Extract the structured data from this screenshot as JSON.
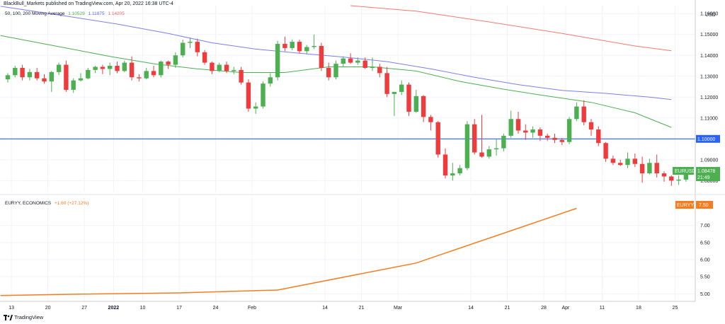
{
  "header": {
    "attribution": "BlackBull_Markets published on TradingView.com, Apr 20, 2022 16:38 UTC-4"
  },
  "ma_legend": {
    "label": "50, 100, 200 Moving Average",
    "values": [
      "1.10529",
      "1.11875",
      "1.14205"
    ],
    "colors": [
      "#4caf50",
      "#5b6ee1",
      "#f06a5f"
    ]
  },
  "eury_legend": {
    "label": "EURYY, ECONOMICS",
    "change": "+1.60 (+27.12%)",
    "color": "#f57c1f"
  },
  "branding": {
    "name": "TradingView"
  },
  "colors": {
    "up": "#4caf50",
    "down": "#ef3b3b",
    "hline": "#2962ff",
    "eury": "#f57c1f"
  },
  "chart_data": [
    {
      "type": "candlestick",
      "symbol": "EURUSD",
      "currency": "USD",
      "last_price": "1.08478",
      "countdown": "21:49",
      "ylim": [
        1.0747,
        1.1638
      ],
      "yticks": [
        "1.16000",
        "1.15000",
        "1.14000",
        "1.13000",
        "1.12000",
        "1.11000",
        "1.09000",
        "1.08000"
      ],
      "horizontal_line": {
        "value": 1.1,
        "label": "1.10000"
      },
      "xticks": [
        {
          "label": "13",
          "x": 0.5
        },
        {
          "label": "20",
          "x": 5.5
        },
        {
          "label": "27",
          "x": 10.5
        },
        {
          "label": "2022",
          "x": 14.5
        },
        {
          "label": "10",
          "x": 18.5
        },
        {
          "label": "17",
          "x": 23.5
        },
        {
          "label": "24",
          "x": 28.5
        },
        {
          "label": "Feb",
          "x": 33.5
        },
        {
          "label": "14",
          "x": 43.5
        },
        {
          "label": "21",
          "x": 48.5
        },
        {
          "label": "Mar",
          "x": 53.5
        },
        {
          "label": "14",
          "x": 63.5
        },
        {
          "label": "21",
          "x": 68.5
        },
        {
          "label": "28",
          "x": 73.5
        },
        {
          "label": "Apr",
          "x": 76.5
        },
        {
          "label": "11",
          "x": 81.5
        },
        {
          "label": "18",
          "x": 86.5
        },
        {
          "label": "25",
          "x": 91.5
        }
      ],
      "candles": [
        [
          1.1285,
          1.1315,
          1.127,
          1.1305
        ],
        [
          1.1305,
          1.135,
          1.1295,
          1.134
        ],
        [
          1.134,
          1.1355,
          1.128,
          1.1295
        ],
        [
          1.1295,
          1.1335,
          1.128,
          1.132
        ],
        [
          1.132,
          1.134,
          1.128,
          1.129
        ],
        [
          1.129,
          1.131,
          1.1265,
          1.1275
        ],
        [
          1.1275,
          1.1325,
          1.1225,
          1.132
        ],
        [
          1.132,
          1.1365,
          1.1305,
          1.1355
        ],
        [
          1.1355,
          1.1375,
          1.1225,
          1.1235
        ],
        [
          1.1235,
          1.129,
          1.122,
          1.128
        ],
        [
          1.128,
          1.1315,
          1.1275,
          1.129
        ],
        [
          1.129,
          1.134,
          1.1285,
          1.133
        ],
        [
          1.133,
          1.135,
          1.1315,
          1.1345
        ],
        [
          1.1345,
          1.1355,
          1.131,
          1.1335
        ],
        [
          1.1335,
          1.1365,
          1.1305,
          1.135
        ],
        [
          1.135,
          1.137,
          1.1315,
          1.1325
        ],
        [
          1.1325,
          1.1375,
          1.132,
          1.1365
        ],
        [
          1.1365,
          1.1395,
          1.128,
          1.1295
        ],
        [
          1.1295,
          1.131,
          1.1275,
          1.129
        ],
        [
          1.129,
          1.134,
          1.1285,
          1.1325
        ],
        [
          1.1325,
          1.135,
          1.1295,
          1.1305
        ],
        [
          1.1305,
          1.1375,
          1.1295,
          1.137
        ],
        [
          1.137,
          1.1375,
          1.1335,
          1.1355
        ],
        [
          1.1355,
          1.1415,
          1.134,
          1.14
        ],
        [
          1.14,
          1.1475,
          1.139,
          1.146
        ],
        [
          1.146,
          1.1485,
          1.1435,
          1.1465
        ],
        [
          1.1465,
          1.148,
          1.1395,
          1.1415
        ],
        [
          1.1415,
          1.1425,
          1.1355,
          1.1365
        ],
        [
          1.1365,
          1.137,
          1.131,
          1.1325
        ],
        [
          1.1325,
          1.1365,
          1.132,
          1.1355
        ],
        [
          1.1355,
          1.137,
          1.1315,
          1.1325
        ],
        [
          1.1325,
          1.1345,
          1.131,
          1.133
        ],
        [
          1.133,
          1.1345,
          1.126,
          1.127
        ],
        [
          1.127,
          1.1285,
          1.113,
          1.1145
        ],
        [
          1.1145,
          1.1175,
          1.112,
          1.1155
        ],
        [
          1.1155,
          1.1275,
          1.1145,
          1.1265
        ],
        [
          1.1265,
          1.1315,
          1.125,
          1.1295
        ],
        [
          1.1295,
          1.147,
          1.128,
          1.1455
        ],
        [
          1.1455,
          1.149,
          1.142,
          1.1435
        ],
        [
          1.1435,
          1.1475,
          1.1425,
          1.1465
        ],
        [
          1.1465,
          1.1475,
          1.141,
          1.142
        ],
        [
          1.142,
          1.145,
          1.1405,
          1.144
        ],
        [
          1.144,
          1.15,
          1.143,
          1.1445
        ],
        [
          1.1445,
          1.146,
          1.1325,
          1.134
        ],
        [
          1.134,
          1.1365,
          1.128,
          1.1295
        ],
        [
          1.1295,
          1.1375,
          1.1285,
          1.136
        ],
        [
          1.136,
          1.1395,
          1.1345,
          1.1385
        ],
        [
          1.1385,
          1.141,
          1.136,
          1.1365
        ],
        [
          1.1365,
          1.139,
          1.1355,
          1.1375
        ],
        [
          1.1375,
          1.139,
          1.1335,
          1.134
        ],
        [
          1.134,
          1.139,
          1.1325,
          1.1345
        ],
        [
          1.1345,
          1.136,
          1.1295,
          1.1315
        ],
        [
          1.1315,
          1.1345,
          1.12,
          1.1215
        ],
        [
          1.1215,
          1.1225,
          1.111,
          1.1225
        ],
        [
          1.1225,
          1.128,
          1.121,
          1.126
        ],
        [
          1.126,
          1.127,
          1.111,
          1.113
        ],
        [
          1.113,
          1.1235,
          1.1125,
          1.1205
        ],
        [
          1.1205,
          1.121,
          1.108,
          1.1105
        ],
        [
          1.1105,
          1.1115,
          1.104,
          1.108
        ],
        [
          1.108,
          1.1085,
          1.091,
          1.0925
        ],
        [
          1.0925,
          1.0955,
          1.081,
          1.0825
        ],
        [
          1.0825,
          1.0885,
          1.08,
          1.0835
        ],
        [
          1.0835,
          1.0875,
          1.0825,
          1.086
        ],
        [
          1.086,
          1.1085,
          1.085,
          1.107
        ],
        [
          1.107,
          1.1095,
          1.0925,
          1.0935
        ],
        [
          1.0935,
          1.1115,
          1.091,
          1.0915
        ],
        [
          1.0915,
          1.0965,
          1.0905,
          1.095
        ],
        [
          1.095,
          1.1,
          1.092,
          1.0955
        ],
        [
          1.0955,
          1.1025,
          1.094,
          1.1015
        ],
        [
          1.1015,
          1.1135,
          1.1005,
          1.1095
        ],
        [
          1.1095,
          1.113,
          1.1025,
          1.104
        ],
        [
          1.104,
          1.107,
          1.0995,
          1.103
        ],
        [
          1.103,
          1.106,
          1.1005,
          1.1045
        ],
        [
          1.1045,
          1.1055,
          1.099,
          1.1015
        ],
        [
          1.1015,
          1.1025,
          1.099,
          1.1005
        ],
        [
          1.1005,
          1.1025,
          1.098,
          1.0995
        ],
        [
          1.0995,
          1.1005,
          1.097,
          1.0985
        ],
        [
          1.0985,
          1.1105,
          1.0975,
          1.1095
        ],
        [
          1.1095,
          1.1175,
          1.1085,
          1.1155
        ],
        [
          1.1155,
          1.1185,
          1.1065,
          1.108
        ],
        [
          1.108,
          1.1095,
          1.1015,
          1.1045
        ],
        [
          1.1045,
          1.106,
          1.0965,
          1.098
        ],
        [
          1.098,
          1.0985,
          1.089,
          1.0905
        ],
        [
          1.0905,
          1.092,
          1.0875,
          1.0885
        ],
        [
          1.0885,
          1.09,
          1.087,
          1.0875
        ],
        [
          1.0875,
          1.0935,
          1.086,
          1.0905
        ],
        [
          1.0905,
          1.093,
          1.0865,
          1.088
        ],
        [
          1.088,
          1.0915,
          1.079,
          1.0835
        ],
        [
          1.0835,
          1.0905,
          1.083,
          1.0885
        ],
        [
          1.0885,
          1.0925,
          1.0815,
          1.0835
        ],
        [
          1.0835,
          1.0845,
          1.0795,
          1.082
        ],
        [
          1.082,
          1.0825,
          1.0775,
          1.08
        ],
        [
          1.08,
          1.0825,
          1.078,
          1.0805
        ],
        [
          1.0805,
          1.086,
          1.0795,
          1.0848
        ]
      ],
      "moving_averages": [
        {
          "name": "50",
          "color": "#4caf50",
          "points": [
            [
              -1,
              1.1495
            ],
            [
              8,
              1.1435
            ],
            [
              14,
              1.1395
            ],
            [
              20,
              1.136
            ],
            [
              26,
              1.1335
            ],
            [
              32,
              1.1318
            ],
            [
              38,
              1.1318
            ],
            [
              44,
              1.1345
            ],
            [
              50,
              1.1345
            ],
            [
              56,
              1.1325
            ],
            [
              62,
              1.1275
            ],
            [
              68,
              1.1238
            ],
            [
              74,
              1.1205
            ],
            [
              80,
              1.1175
            ],
            [
              86,
              1.1125
            ],
            [
              91,
              1.1055
            ]
          ]
        },
        {
          "name": "100",
          "color": "#7b7ff0",
          "points": [
            [
              -1,
              1.1635
            ],
            [
              8,
              1.1588
            ],
            [
              15,
              1.155
            ],
            [
              22,
              1.1505
            ],
            [
              28,
              1.146
            ],
            [
              34,
              1.143
            ],
            [
              40,
              1.141
            ],
            [
              46,
              1.1392
            ],
            [
              52,
              1.137
            ],
            [
              58,
              1.1335
            ],
            [
              64,
              1.1295
            ],
            [
              70,
              1.126
            ],
            [
              76,
              1.1232
            ],
            [
              82,
              1.1218
            ],
            [
              88,
              1.12
            ],
            [
              91,
              1.1188
            ]
          ]
        },
        {
          "name": "200",
          "color": "#f47a70",
          "points": [
            [
              47,
              1.1638
            ],
            [
              56,
              1.1612
            ],
            [
              66,
              1.156
            ],
            [
              76,
              1.1505
            ],
            [
              86,
              1.1445
            ],
            [
              91,
              1.1422
            ]
          ]
        }
      ]
    },
    {
      "type": "line",
      "symbol": "EURYY",
      "last_value": "7.50",
      "ylim": [
        4.78,
        7.82
      ],
      "yticks": [
        "7.00",
        "6.50",
        "6.00",
        "5.50",
        "5.00"
      ],
      "points": [
        [
          -1,
          4.95
        ],
        [
          10,
          4.99
        ],
        [
          24,
          5.03
        ],
        [
          37,
          5.11
        ],
        [
          56,
          5.9
        ],
        [
          78,
          7.5
        ]
      ]
    }
  ]
}
